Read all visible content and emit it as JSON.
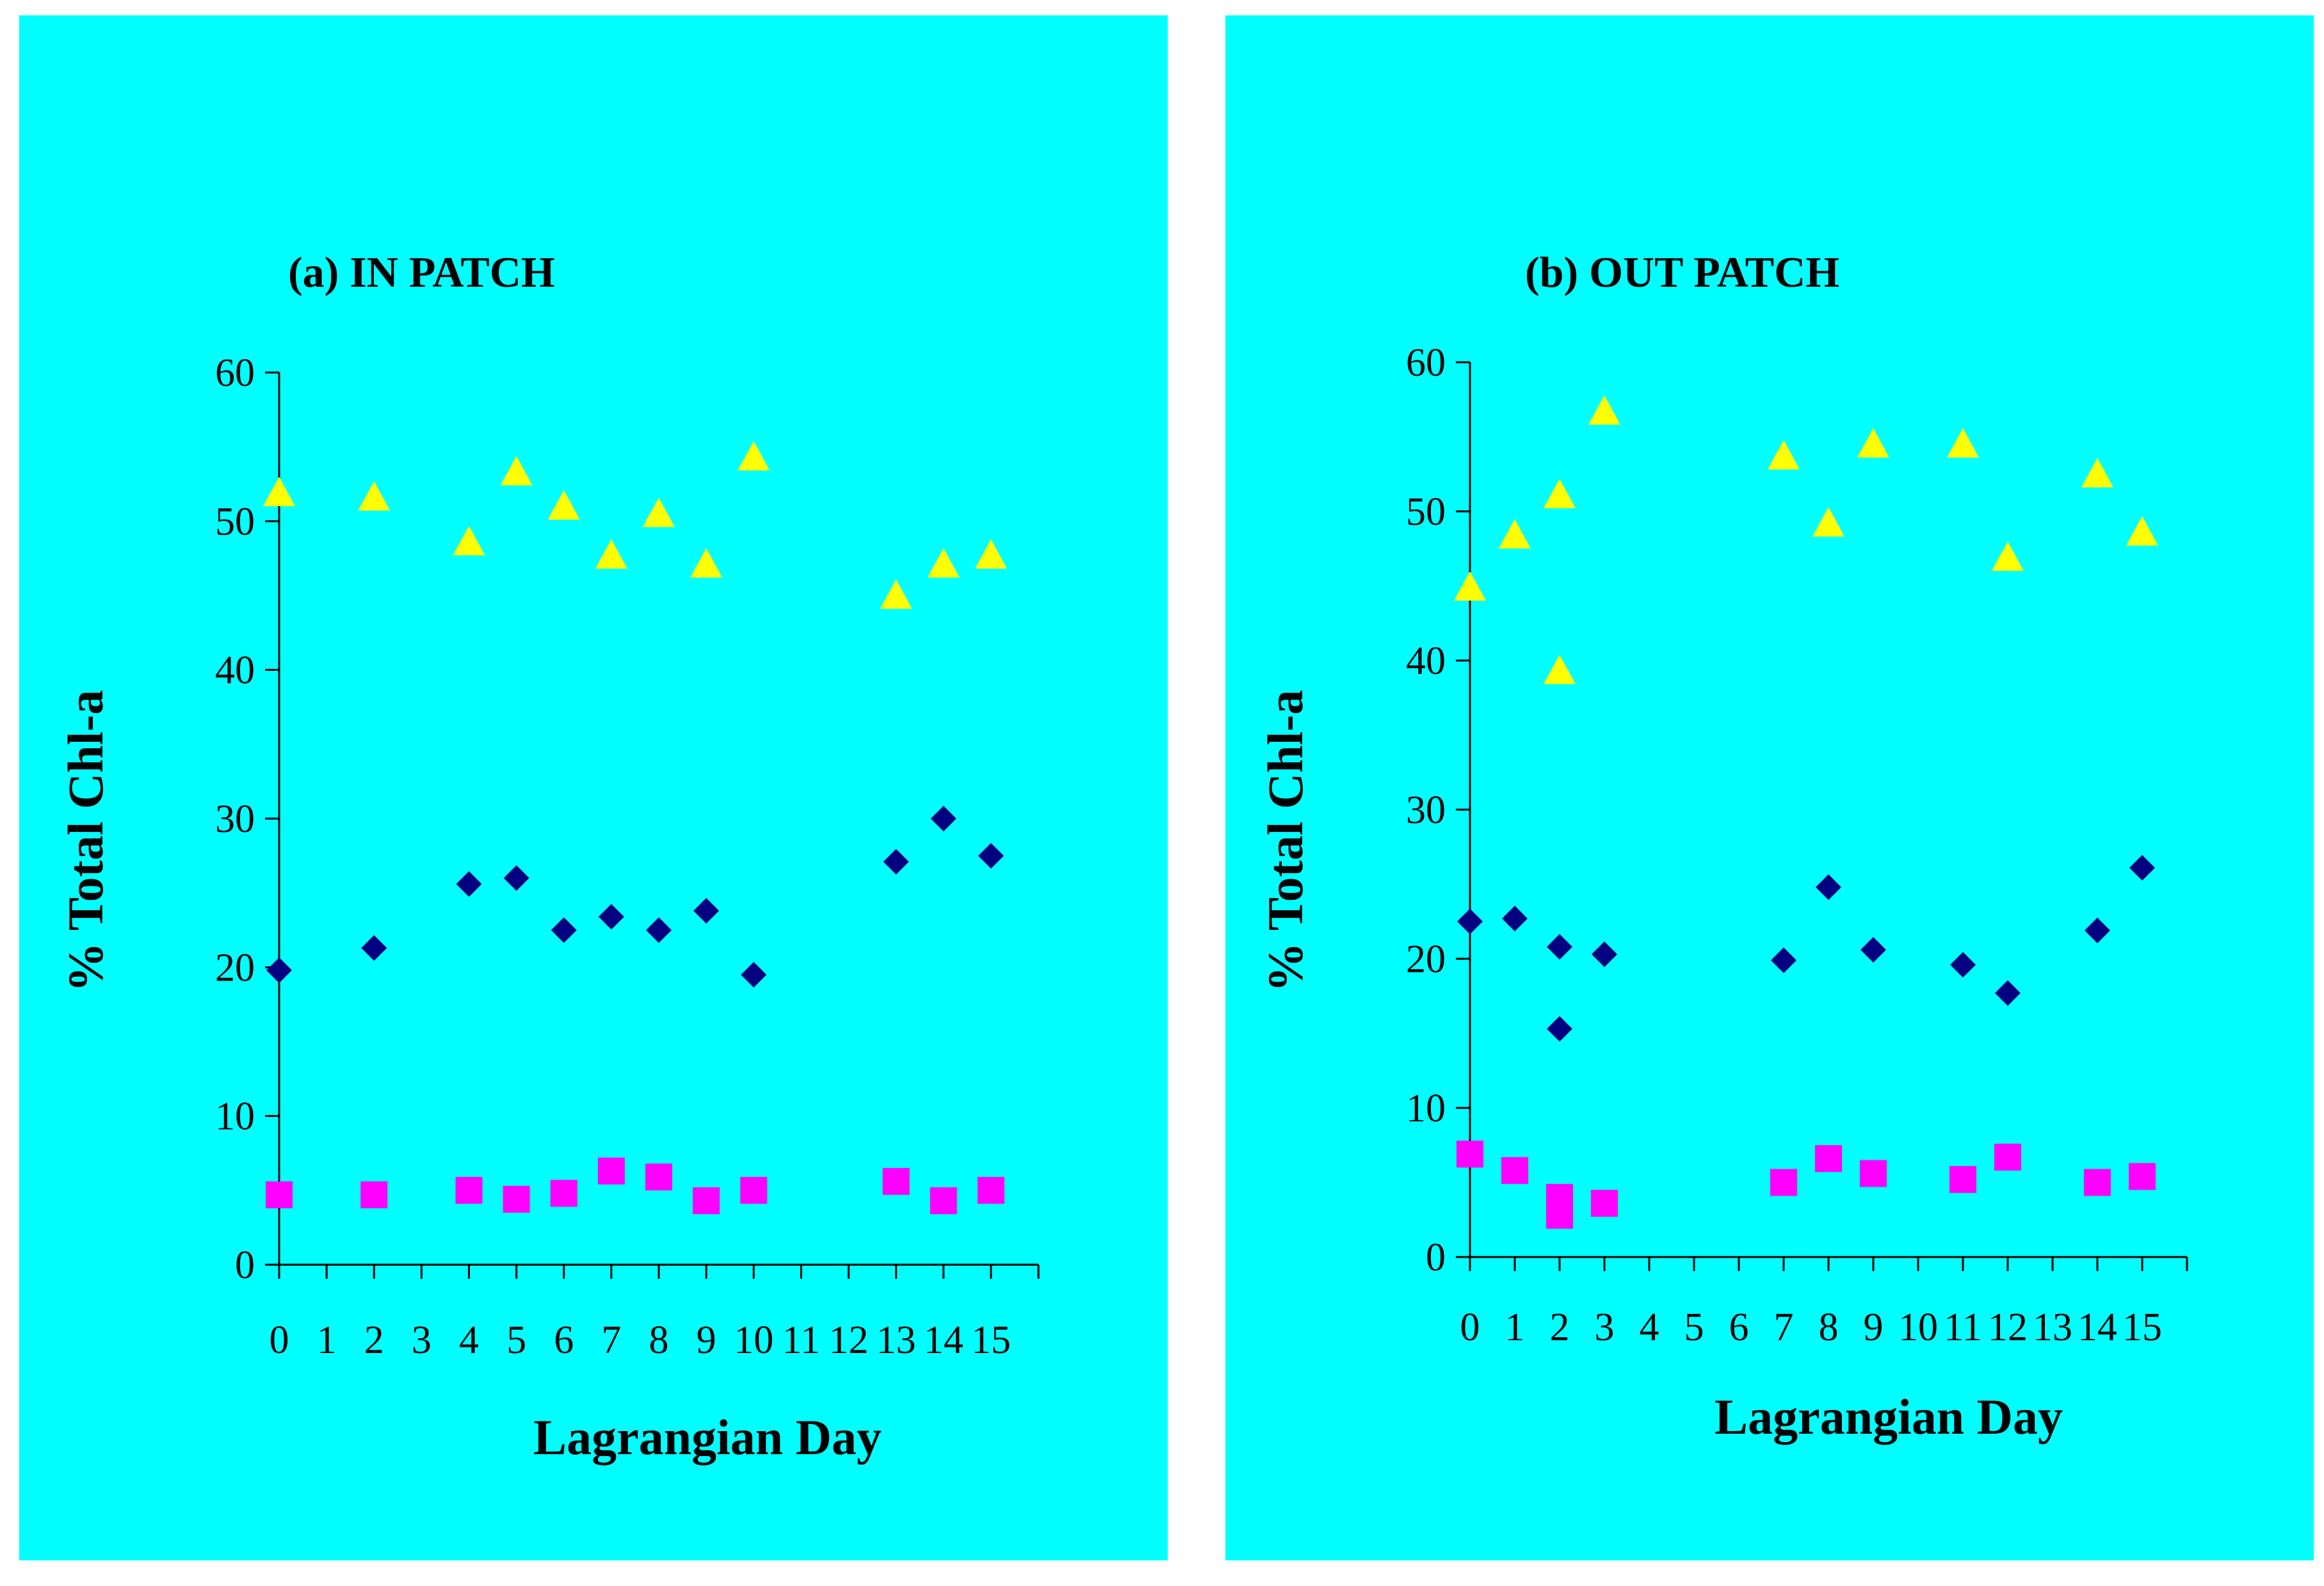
{
  "colors": {
    "panel_background": "#00ffff",
    "series_triangle": "#ffff00",
    "series_diamond": "#000080",
    "series_square": "#ff00ff"
  },
  "chart_data": [
    {
      "type": "scatter",
      "title": "(a) IN PATCH",
      "xlabel": "Lagrangian Day",
      "ylabel": "% Total Chl-a",
      "ylim": [
        0,
        60
      ],
      "yticks": [
        0,
        10,
        20,
        30,
        40,
        50,
        60
      ],
      "categories": [
        "0",
        "1",
        "2",
        "3",
        "4",
        "5",
        "6",
        "7",
        "8",
        "9",
        "10",
        "11",
        "12",
        "13",
        "14",
        "15"
      ],
      "grid": false,
      "legend": "none",
      "series": [
        {
          "name": "triangle",
          "marker": "triangle",
          "x": [
            0,
            2,
            4,
            5,
            6,
            7,
            8,
            9,
            10,
            13,
            14,
            15
          ],
          "values": [
            51.8,
            51.5,
            48.5,
            53.2,
            50.9,
            47.6,
            50.4,
            47.0,
            54.2,
            44.9,
            47.0,
            47.6
          ]
        },
        {
          "name": "diamond",
          "marker": "diamond",
          "x": [
            0,
            2,
            4,
            5,
            6,
            7,
            8,
            9,
            10,
            13,
            14,
            15
          ],
          "values": [
            19.8,
            21.3,
            25.6,
            26.0,
            22.5,
            23.4,
            22.5,
            23.8,
            19.5,
            27.1,
            30.0,
            27.5
          ]
        },
        {
          "name": "square",
          "marker": "square",
          "x": [
            0,
            2,
            4,
            5,
            6,
            7,
            8,
            9,
            10,
            13,
            14,
            15
          ],
          "values": [
            4.7,
            4.7,
            5.0,
            4.4,
            4.8,
            6.3,
            5.9,
            4.3,
            5.0,
            5.6,
            4.3,
            5.0
          ]
        }
      ]
    },
    {
      "type": "scatter",
      "title": "(b) OUT PATCH",
      "xlabel": "Lagrangian Day",
      "ylabel": "% Total Chl-a",
      "ylim": [
        0,
        60
      ],
      "yticks": [
        0,
        10,
        20,
        30,
        40,
        50,
        60
      ],
      "categories": [
        "0",
        "1",
        "2",
        "3",
        "4",
        "5",
        "6",
        "7",
        "8",
        "9",
        "10",
        "11",
        "12",
        "13",
        "14",
        "15"
      ],
      "grid": false,
      "legend": "none",
      "series": [
        {
          "name": "triangle",
          "marker": "triangle",
          "x": [
            0,
            1,
            2,
            2,
            3,
            7,
            8,
            9,
            11,
            12,
            14,
            15
          ],
          "values": [
            44.8,
            48.3,
            51.0,
            39.2,
            56.6,
            53.6,
            49.1,
            54.4,
            54.4,
            46.8,
            52.4,
            48.5
          ]
        },
        {
          "name": "diamond",
          "marker": "diamond",
          "x": [
            0,
            1,
            2,
            2,
            3,
            7,
            8,
            9,
            11,
            12,
            14,
            15
          ],
          "values": [
            22.5,
            22.7,
            20.8,
            15.3,
            20.3,
            19.9,
            24.8,
            20.6,
            19.6,
            17.7,
            21.9,
            26.1
          ]
        },
        {
          "name": "square",
          "marker": "square",
          "x": [
            0,
            1,
            2,
            2,
            3,
            7,
            8,
            9,
            11,
            12,
            14,
            15
          ],
          "values": [
            6.9,
            5.8,
            4.0,
            2.8,
            3.6,
            5.0,
            6.6,
            5.6,
            5.2,
            6.7,
            5.0,
            5.4
          ]
        }
      ]
    }
  ]
}
